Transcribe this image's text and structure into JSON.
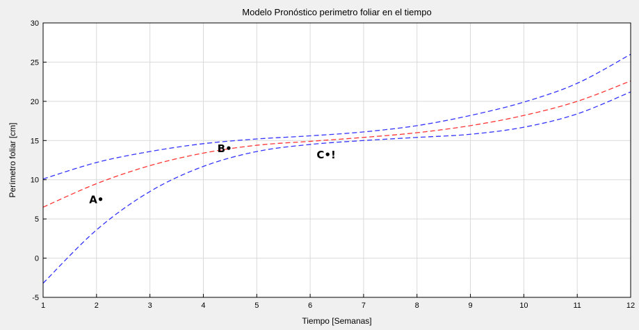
{
  "chart_data": {
    "type": "line",
    "title": "Modelo Pronóstico perimetro foliar en el tiempo",
    "xlabel": "Tiempo [Semanas]",
    "ylabel": "Perímetro foliar [cm]",
    "xlim": [
      1,
      12
    ],
    "ylim": [
      -5,
      30
    ],
    "xticks": [
      1,
      2,
      3,
      4,
      5,
      6,
      7,
      8,
      9,
      10,
      11,
      12
    ],
    "yticks": [
      -5,
      0,
      5,
      10,
      15,
      20,
      25,
      30
    ],
    "grid": true,
    "x": [
      1,
      2,
      3,
      4,
      5,
      6,
      7,
      8,
      9,
      10,
      11,
      12
    ],
    "series": [
      {
        "role": "upper bound",
        "color": "#3333ff",
        "dash": "dashed",
        "values": [
          10.1,
          12.2,
          13.6,
          14.6,
          15.2,
          15.6,
          16.1,
          16.9,
          18.2,
          19.9,
          22.3,
          26.0
        ]
      },
      {
        "role": "forecast",
        "color": "#ff3333",
        "dash": "dashed",
        "values": [
          6.5,
          9.5,
          11.8,
          13.4,
          14.4,
          14.9,
          15.4,
          16.0,
          16.9,
          18.2,
          20.0,
          22.6
        ]
      },
      {
        "role": "lower bound",
        "color": "#3333ff",
        "dash": "dashed",
        "values": [
          -3.2,
          3.6,
          8.5,
          11.7,
          13.6,
          14.5,
          15.0,
          15.4,
          15.8,
          16.7,
          18.4,
          21.2
        ]
      }
    ],
    "annotations": [
      {
        "text": "A•",
        "x": 2.0,
        "y": 7.0
      },
      {
        "text": "B•",
        "x": 4.4,
        "y": 13.5
      },
      {
        "text": "C•!",
        "x": 6.3,
        "y": 12.7
      }
    ]
  }
}
